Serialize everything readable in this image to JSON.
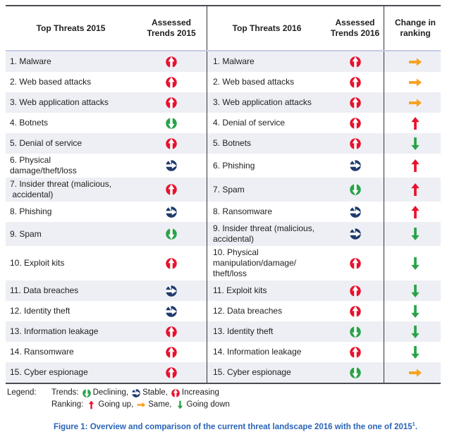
{
  "colors": {
    "red": "#e8112d",
    "green": "#28a348",
    "navy": "#1f3a6b",
    "orange": "#f7a11c",
    "stripe": "#edeff4",
    "caption_blue": "#2a64b8"
  },
  "table": {
    "headers": {
      "threats_2015": "Top Threats 2015",
      "trends_2015": "Assessed\nTrends 2015",
      "threats_2016": "Top Threats 2016",
      "trends_2016": "Assessed\nTrends 2016",
      "change": "Change in\nranking"
    },
    "rows": [
      {
        "threat_2015": "1. Malware",
        "trend_2015": "increasing",
        "threat_2016": "1. Malware",
        "trend_2016": "increasing",
        "change": "same"
      },
      {
        "threat_2015": "2. Web based attacks",
        "trend_2015": "increasing",
        "threat_2016": "2. Web based attacks",
        "trend_2016": "increasing",
        "change": "same"
      },
      {
        "threat_2015": "3. Web application attacks",
        "trend_2015": "increasing",
        "threat_2016": "3. Web application attacks",
        "trend_2016": "increasing",
        "change": "same"
      },
      {
        "threat_2015": "4. Botnets",
        "trend_2015": "declining",
        "threat_2016": "4. Denial of service",
        "trend_2016": "increasing",
        "change": "up"
      },
      {
        "threat_2015": "5. Denial of service",
        "trend_2015": "increasing",
        "threat_2016": "5. Botnets",
        "trend_2016": "increasing",
        "change": "down"
      },
      {
        "threat_2015": "6. Physical\ndamage/theft/loss",
        "trend_2015": "stable",
        "threat_2016": "6. Phishing",
        "trend_2016": "stable",
        "change": "up"
      },
      {
        "threat_2015": "7. Insider threat (malicious,\n accidental)",
        "trend_2015": "increasing",
        "threat_2016": "7. Spam",
        "trend_2016": "declining",
        "change": "up"
      },
      {
        "threat_2015": "8. Phishing",
        "trend_2015": "stable",
        "threat_2016": "8. Ransomware",
        "trend_2016": "stable",
        "change": "up"
      },
      {
        "threat_2015": "9. Spam",
        "trend_2015": "declining",
        "threat_2016": "9. Insider threat (malicious,\naccidental)",
        "trend_2016": "stable",
        "change": "down"
      },
      {
        "threat_2015": "10. Exploit kits",
        "trend_2015": "increasing",
        "threat_2016": "10. Physical\nmanipulation/damage/\ntheft/loss",
        "trend_2016": "increasing",
        "change": "down"
      },
      {
        "threat_2015": "11. Data breaches",
        "trend_2015": "stable",
        "threat_2016": "11. Exploit kits",
        "trend_2016": "increasing",
        "change": "down"
      },
      {
        "threat_2015": "12. Identity theft",
        "trend_2015": "stable",
        "threat_2016": "12. Data breaches",
        "trend_2016": "increasing",
        "change": "down"
      },
      {
        "threat_2015": "13. Information leakage",
        "trend_2015": "increasing",
        "threat_2016": "13. Identity theft",
        "trend_2016": "declining",
        "change": "down"
      },
      {
        "threat_2015": "14. Ransomware",
        "trend_2015": "increasing",
        "threat_2016": "14. Information leakage",
        "trend_2016": "increasing",
        "change": "down"
      },
      {
        "threat_2015": "15. Cyber espionage",
        "trend_2015": "increasing",
        "threat_2016": "15. Cyber espionage",
        "trend_2016": "declining",
        "change": "same"
      }
    ]
  },
  "legend": {
    "label": "Legend:",
    "trends_prefix": "Trends:",
    "ranking_prefix": "Ranking:",
    "trend_items": [
      {
        "icon": "declining",
        "label": "Declining,"
      },
      {
        "icon": "stable",
        "label": "Stable,"
      },
      {
        "icon": "increasing",
        "label": "Increasing"
      }
    ],
    "ranking_items": [
      {
        "icon": "up",
        "label": "Going up,"
      },
      {
        "icon": "same",
        "label": "Same,"
      },
      {
        "icon": "down",
        "label": "Going down"
      }
    ]
  },
  "caption": {
    "text": "Figure 1: Overview and comparison of the current threat landscape 2016 with the one of 2015",
    "superscript": "1",
    "period": "."
  }
}
